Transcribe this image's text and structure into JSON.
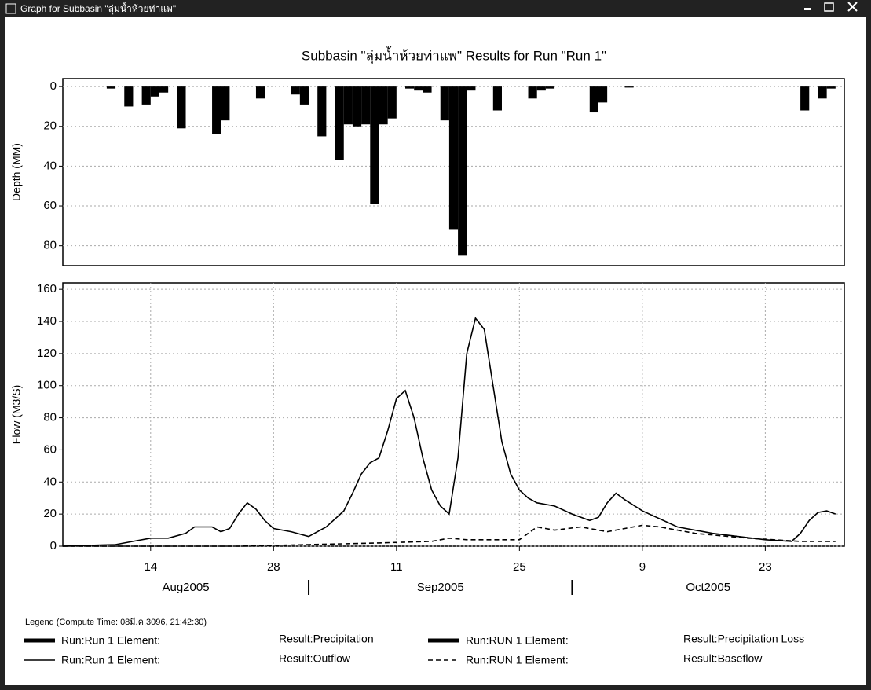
{
  "window": {
    "title": "Graph for Subbasin \"ลุ่มน้ำห้วยท่าแพ\""
  },
  "chart_data": [
    {
      "type": "bar",
      "title": "Subbasin \"ลุ่มน้ำห้วยท่าแพ\" Results for Run \"Run 1\"",
      "ylabel": "Depth (MM)",
      "ylim": [
        -4,
        90
      ],
      "y_inverted": true,
      "yticks": [
        0,
        20,
        40,
        60,
        80
      ],
      "grid": true,
      "xlim": [
        "2005-08-04",
        "2005-11-01"
      ],
      "series": [
        {
          "color": "#000000",
          "x": [
            "2005-08-09",
            "2005-08-11",
            "2005-08-13",
            "2005-08-14",
            "2005-08-15",
            "2005-08-17",
            "2005-08-21",
            "2005-08-22",
            "2005-08-26",
            "2005-08-30",
            "2005-08-31",
            "2005-09-02",
            "2005-09-04",
            "2005-09-05",
            "2005-09-06",
            "2005-09-07",
            "2005-09-08",
            "2005-09-09",
            "2005-09-10",
            "2005-09-12",
            "2005-09-13",
            "2005-09-14",
            "2005-09-16",
            "2005-09-17",
            "2005-09-18",
            "2005-09-19",
            "2005-09-22",
            "2005-09-26",
            "2005-09-27",
            "2005-09-28",
            "2005-10-03",
            "2005-10-04",
            "2005-10-07",
            "2005-10-27",
            "2005-10-29",
            "2005-10-30"
          ],
          "values": [
            1,
            10,
            9,
            5,
            3,
            21,
            24,
            17,
            6,
            4,
            9,
            25,
            37,
            19,
            20,
            19,
            59,
            19,
            16,
            1,
            2,
            3,
            17,
            72,
            85,
            2,
            12,
            6,
            2,
            1,
            13,
            8,
            0.5,
            12,
            6,
            1
          ]
        }
      ]
    },
    {
      "type": "line",
      "ylabel": "Flow (M3/S)",
      "ylim": [
        0,
        164
      ],
      "yticks": [
        0,
        20,
        40,
        60,
        80,
        100,
        120,
        140,
        160
      ],
      "grid": true,
      "xlim": [
        "2005-08-04",
        "2005-11-01"
      ],
      "xticks": [
        {
          "value": "2005-08-14",
          "label": "14"
        },
        {
          "value": "2005-08-28",
          "label": "28"
        },
        {
          "value": "2005-09-11",
          "label": "11"
        },
        {
          "value": "2005-09-25",
          "label": "25"
        },
        {
          "value": "2005-10-09",
          "label": "9"
        },
        {
          "value": "2005-10-23",
          "label": "23"
        }
      ],
      "month_ticks": [
        {
          "value": "2005-08",
          "label": "Aug2005"
        },
        {
          "value": "2005-09",
          "label": "Sep2005"
        },
        {
          "value": "2005-10",
          "label": "Oct2005"
        }
      ],
      "series": [
        {
          "color": "#000000",
          "dash": false,
          "x": [
            "2005-08-04",
            "2005-08-10",
            "2005-08-12",
            "2005-08-14",
            "2005-08-16",
            "2005-08-18",
            "2005-08-19",
            "2005-08-21",
            "2005-08-22",
            "2005-08-23",
            "2005-08-24",
            "2005-08-25",
            "2005-08-26",
            "2005-08-27",
            "2005-08-28",
            "2005-08-30",
            "2005-09-01",
            "2005-09-03",
            "2005-09-05",
            "2005-09-06",
            "2005-09-07",
            "2005-09-08",
            "2005-09-09",
            "2005-09-10",
            "2005-09-11",
            "2005-09-12",
            "2005-09-13",
            "2005-09-14",
            "2005-09-15",
            "2005-09-16",
            "2005-09-17",
            "2005-09-18",
            "2005-09-19",
            "2005-09-20",
            "2005-09-21",
            "2005-09-22",
            "2005-09-23",
            "2005-09-24",
            "2005-09-25",
            "2005-09-26",
            "2005-09-27",
            "2005-09-29",
            "2005-10-01",
            "2005-10-03",
            "2005-10-04",
            "2005-10-05",
            "2005-10-06",
            "2005-10-07",
            "2005-10-09",
            "2005-10-13",
            "2005-10-17",
            "2005-10-23",
            "2005-10-26",
            "2005-10-27",
            "2005-10-28",
            "2005-10-29",
            "2005-10-30",
            "2005-10-31"
          ],
          "values": [
            0,
            1,
            3,
            5,
            5,
            8,
            12,
            12,
            9,
            11,
            20,
            27,
            23,
            16,
            11,
            9,
            6,
            12,
            22,
            33,
            45,
            52,
            55,
            72,
            92,
            97,
            80,
            55,
            35,
            25,
            20,
            55,
            120,
            142,
            135,
            100,
            65,
            45,
            35,
            30,
            27,
            25,
            20,
            16,
            18,
            27,
            33,
            29,
            22,
            12,
            8,
            4,
            3,
            8,
            16,
            21,
            22,
            20
          ]
        },
        {
          "color": "#000000",
          "dash": true,
          "x": [
            "2005-08-04",
            "2005-08-24",
            "2005-09-01",
            "2005-09-09",
            "2005-09-15",
            "2005-09-17",
            "2005-09-19",
            "2005-09-25",
            "2005-09-26",
            "2005-09-27",
            "2005-09-29",
            "2005-10-02",
            "2005-10-05",
            "2005-10-07",
            "2005-10-09",
            "2005-10-11",
            "2005-10-15",
            "2005-10-21",
            "2005-10-27",
            "2005-10-31"
          ],
          "values": [
            0,
            0,
            1,
            2,
            3,
            5,
            4,
            4,
            8,
            12,
            10,
            12,
            9,
            11,
            13,
            12,
            8,
            5,
            3,
            3
          ]
        }
      ]
    }
  ],
  "legend": {
    "heading": "Legend (Compute Time: 08มี.ค.3096, 21:42:30)",
    "items": [
      {
        "run": "Run:Run 1 Element:",
        "result": "Result:Precipitation",
        "line": "thick"
      },
      {
        "run": "Run:RUN 1 Element:",
        "result": "Result:Precipitation Loss",
        "line": "thick"
      },
      {
        "run": "Run:Run 1 Element:",
        "result": "Result:Outflow",
        "line": "thin"
      },
      {
        "run": "Run:RUN 1 Element:",
        "result": "Result:Baseflow",
        "line": "dashed"
      }
    ]
  }
}
